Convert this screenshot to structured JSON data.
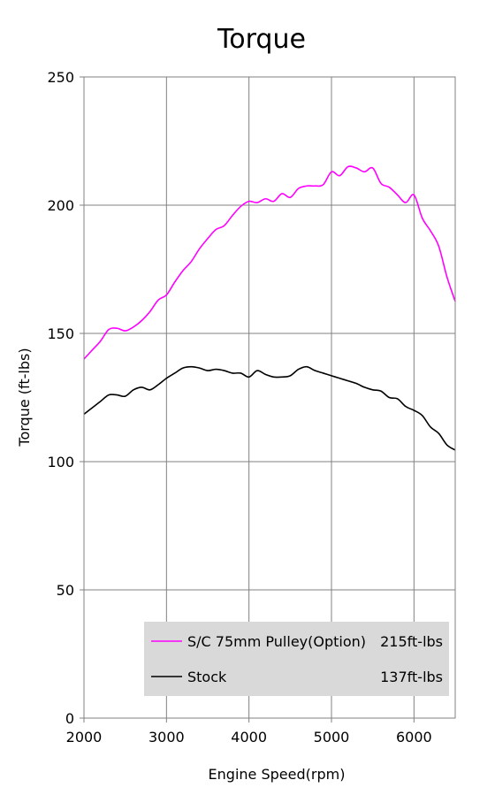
{
  "chart_data": {
    "type": "line",
    "title": "Torque",
    "xlabel": "Engine Speed(rpm)",
    "ylabel": "Torque (ft-lbs)",
    "xlim": [
      2000,
      6500
    ],
    "ylim": [
      0,
      250
    ],
    "x_ticks": [
      2000,
      3000,
      4000,
      5000,
      6000
    ],
    "y_ticks": [
      0,
      50,
      100,
      150,
      200,
      250
    ],
    "grid": true,
    "legend_position": "bottom-right",
    "series": [
      {
        "name": "S/C 75mm Pulley(Option)",
        "peak_label": "215ft-lbs",
        "color": "#ff00ff",
        "x": [
          2000,
          2100,
          2200,
          2300,
          2400,
          2500,
          2600,
          2700,
          2800,
          2900,
          3000,
          3100,
          3200,
          3300,
          3400,
          3500,
          3600,
          3700,
          3800,
          3900,
          4000,
          4100,
          4200,
          4300,
          4400,
          4500,
          4600,
          4700,
          4800,
          4900,
          5000,
          5100,
          5200,
          5300,
          5400,
          5500,
          5600,
          5700,
          5800,
          5900,
          6000,
          6100,
          6200,
          6300,
          6400,
          6500
        ],
        "y": [
          140,
          143.5,
          147,
          151.5,
          152,
          151,
          152.5,
          155,
          158.5,
          163,
          165,
          170,
          174.5,
          178,
          183,
          187,
          190.5,
          192,
          196,
          199.5,
          201.5,
          201,
          202.5,
          201.5,
          204.5,
          203,
          206.5,
          207.5,
          207.5,
          208,
          213,
          211.5,
          215,
          214.5,
          213,
          214.5,
          208.5,
          207,
          204,
          201,
          204,
          195,
          190,
          184,
          172,
          162.5
        ]
      },
      {
        "name": "Stock",
        "peak_label": "137ft-lbs",
        "color": "#000000",
        "x": [
          2000,
          2100,
          2200,
          2300,
          2400,
          2500,
          2600,
          2700,
          2800,
          2900,
          3000,
          3100,
          3200,
          3300,
          3400,
          3500,
          3600,
          3700,
          3800,
          3900,
          4000,
          4100,
          4200,
          4300,
          4400,
          4500,
          4600,
          4700,
          4800,
          4900,
          5000,
          5100,
          5200,
          5300,
          5400,
          5500,
          5600,
          5700,
          5800,
          5900,
          6000,
          6100,
          6200,
          6300,
          6400,
          6500
        ],
        "y": [
          118.5,
          121,
          123.5,
          126,
          126,
          125.5,
          128,
          129,
          128,
          130,
          132.5,
          134.5,
          136.5,
          137,
          136.5,
          135.5,
          136,
          135.5,
          134.5,
          134.5,
          133,
          135.5,
          134,
          133,
          133,
          133.5,
          136,
          137,
          135.5,
          134.5,
          133.5,
          132.5,
          131.5,
          130.5,
          129,
          128,
          127.5,
          125,
          124.5,
          121.5,
          120,
          118,
          113.5,
          111,
          106.5,
          104.5
        ]
      }
    ]
  }
}
